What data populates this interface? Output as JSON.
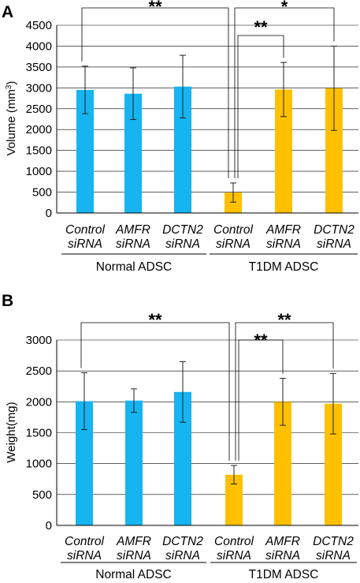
{
  "chart_data": [
    {
      "type": "bar",
      "panel": "A",
      "categories": [
        "Control siRNA",
        "AMFR siRNA",
        "DCTN2 siRNA",
        "Control siRNA",
        "AMFR siRNA",
        "DCTN2 siRNA"
      ],
      "category_lines": [
        [
          "Control",
          "siRNA"
        ],
        [
          "AMFR",
          "siRNA"
        ],
        [
          "DCTN2",
          "siRNA"
        ],
        [
          "Control",
          "siRNA"
        ],
        [
          "AMFR",
          "siRNA"
        ],
        [
          "DCTN2",
          "siRNA"
        ]
      ],
      "groups": [
        {
          "label": "Normal ADSC",
          "from": 0,
          "to": 2
        },
        {
          "label": "T1DM ADSC",
          "from": 3,
          "to": 5
        }
      ],
      "values": [
        2950,
        2860,
        3030,
        490,
        2960,
        2990
      ],
      "errors": [
        570,
        620,
        750,
        230,
        650,
        1010
      ],
      "colors": [
        "#16b4f0",
        "#16b4f0",
        "#16b4f0",
        "#ffc000",
        "#ffc000",
        "#ffc000"
      ],
      "ylabel_main": "Volume (mm",
      "ylabel_sup": "3",
      "ylabel_end": ")",
      "ylim": [
        0,
        4500
      ],
      "yticks": [
        0,
        500,
        1000,
        1500,
        2000,
        2500,
        3000,
        3500,
        4000,
        4500
      ],
      "grid": true,
      "annotations": [
        {
          "from": 0,
          "to": 3,
          "text": "**",
          "level": 0
        },
        {
          "from": 3,
          "to": 4,
          "text": "**",
          "level": 1
        },
        {
          "from": 3,
          "to": 5,
          "text": "*",
          "level": 0
        }
      ]
    },
    {
      "type": "bar",
      "panel": "B",
      "categories": [
        "Control siRNA",
        "AMFR siRNA",
        "DCTN2 siRNA",
        "Control siRNA",
        "AMFR siRNA",
        "DCTN2 siRNA"
      ],
      "category_lines": [
        [
          "Control",
          "siRNA"
        ],
        [
          "AMFR",
          "siRNA"
        ],
        [
          "DCTN2",
          "siRNA"
        ],
        [
          "Control",
          "siRNA"
        ],
        [
          "AMFR",
          "siRNA"
        ],
        [
          "DCTN2",
          "siRNA"
        ]
      ],
      "groups": [
        {
          "label": "Normal ADSC",
          "from": 0,
          "to": 2
        },
        {
          "label": "T1DM ADSC",
          "from": 3,
          "to": 5
        }
      ],
      "values": [
        2010,
        2020,
        2160,
        820,
        2000,
        1970
      ],
      "errors": [
        460,
        190,
        490,
        150,
        380,
        490
      ],
      "colors": [
        "#16b4f0",
        "#16b4f0",
        "#16b4f0",
        "#ffc000",
        "#ffc000",
        "#ffc000"
      ],
      "ylabel_main": "Weight(mg)",
      "ylabel_sup": "",
      "ylabel_end": "",
      "ylim": [
        0,
        3000
      ],
      "yticks": [
        0,
        500,
        1000,
        1500,
        2000,
        2500,
        3000
      ],
      "grid": true,
      "annotations": [
        {
          "from": 0,
          "to": 3,
          "text": "**",
          "level": 0
        },
        {
          "from": 3,
          "to": 4,
          "text": "**",
          "level": 1
        },
        {
          "from": 3,
          "to": 5,
          "text": "**",
          "level": 0
        }
      ]
    }
  ]
}
